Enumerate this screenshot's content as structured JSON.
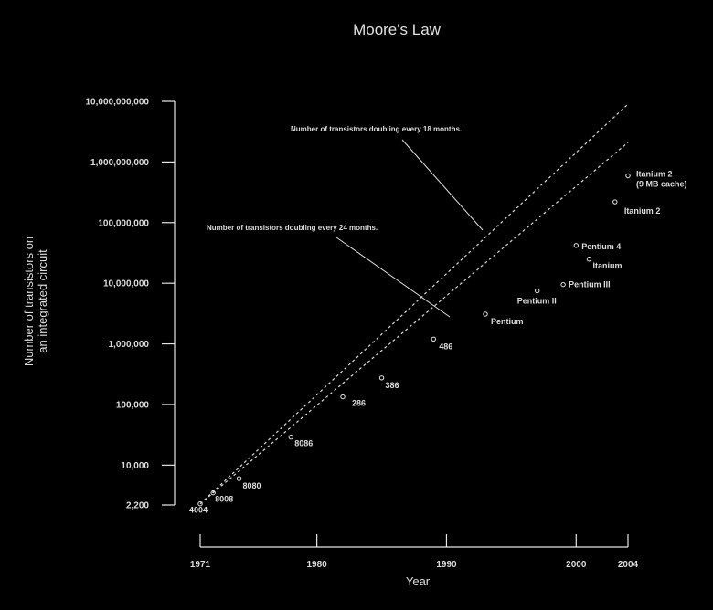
{
  "chart_data": {
    "type": "scatter",
    "title": "Moore's Law",
    "xlabel": "Year",
    "ylabel_lines": [
      "Number of transistors on",
      "an integrated circuit"
    ],
    "yscale": "log",
    "xlim": [
      1971,
      2004
    ],
    "ylim": [
      2200,
      10000000000
    ],
    "x_ticks": [
      {
        "value": 1971,
        "label": "1971"
      },
      {
        "value": 1980,
        "label": "1980"
      },
      {
        "value": 1990,
        "label": "1990"
      },
      {
        "value": 2000,
        "label": "2000"
      },
      {
        "value": 2004,
        "label": "2004"
      }
    ],
    "y_ticks": [
      {
        "value": 2200,
        "label": "2,200"
      },
      {
        "value": 10000,
        "label": "10,000"
      },
      {
        "value": 100000,
        "label": "100,000"
      },
      {
        "value": 1000000,
        "label": "1,000,000"
      },
      {
        "value": 10000000,
        "label": "10,000,000"
      },
      {
        "value": 100000000,
        "label": "100,000,000"
      },
      {
        "value": 1000000000,
        "label": "1,000,000,000"
      },
      {
        "value": 10000000000,
        "label": "10,000,000,000"
      }
    ],
    "points": [
      {
        "label": "4004",
        "year": 1971,
        "transistors": 2300
      },
      {
        "label": "8008",
        "year": 1972,
        "transistors": 3500
      },
      {
        "label": "8080",
        "year": 1974,
        "transistors": 6000
      },
      {
        "label": "8086",
        "year": 1978,
        "transistors": 29000
      },
      {
        "label": "286",
        "year": 1982,
        "transistors": 134000
      },
      {
        "label": "386",
        "year": 1985,
        "transistors": 275000
      },
      {
        "label": "486",
        "year": 1989,
        "transistors": 1200000
      },
      {
        "label": "Pentium",
        "year": 1993,
        "transistors": 3100000
      },
      {
        "label": "Pentium II",
        "year": 1997,
        "transistors": 7500000
      },
      {
        "label": "Pentium III",
        "year": 1999,
        "transistors": 9500000
      },
      {
        "label": "Pentium 4",
        "year": 2000,
        "transistors": 42000000
      },
      {
        "label": "Itanium",
        "year": 2001,
        "transistors": 25000000
      },
      {
        "label": "Itanium 2",
        "year": 2003,
        "transistors": 220000000
      },
      {
        "label": "Itanium 2\n(9 MB cache)",
        "year": 2004,
        "transistors": 592000000
      }
    ],
    "trend_lines": [
      {
        "name": "18 months",
        "from": {
          "year": 1971,
          "transistors": 2300
        },
        "to": {
          "year": 2004,
          "transistors": 9000000000
        }
      },
      {
        "name": "24 months",
        "from": {
          "year": 1971,
          "transistors": 2300
        },
        "to": {
          "year": 2004,
          "transistors": 2100000000
        }
      }
    ],
    "annotations": [
      {
        "text": "Number of transistors doubling every 18 months."
      },
      {
        "text": "Number of transistors doubling every 24 months."
      }
    ]
  }
}
